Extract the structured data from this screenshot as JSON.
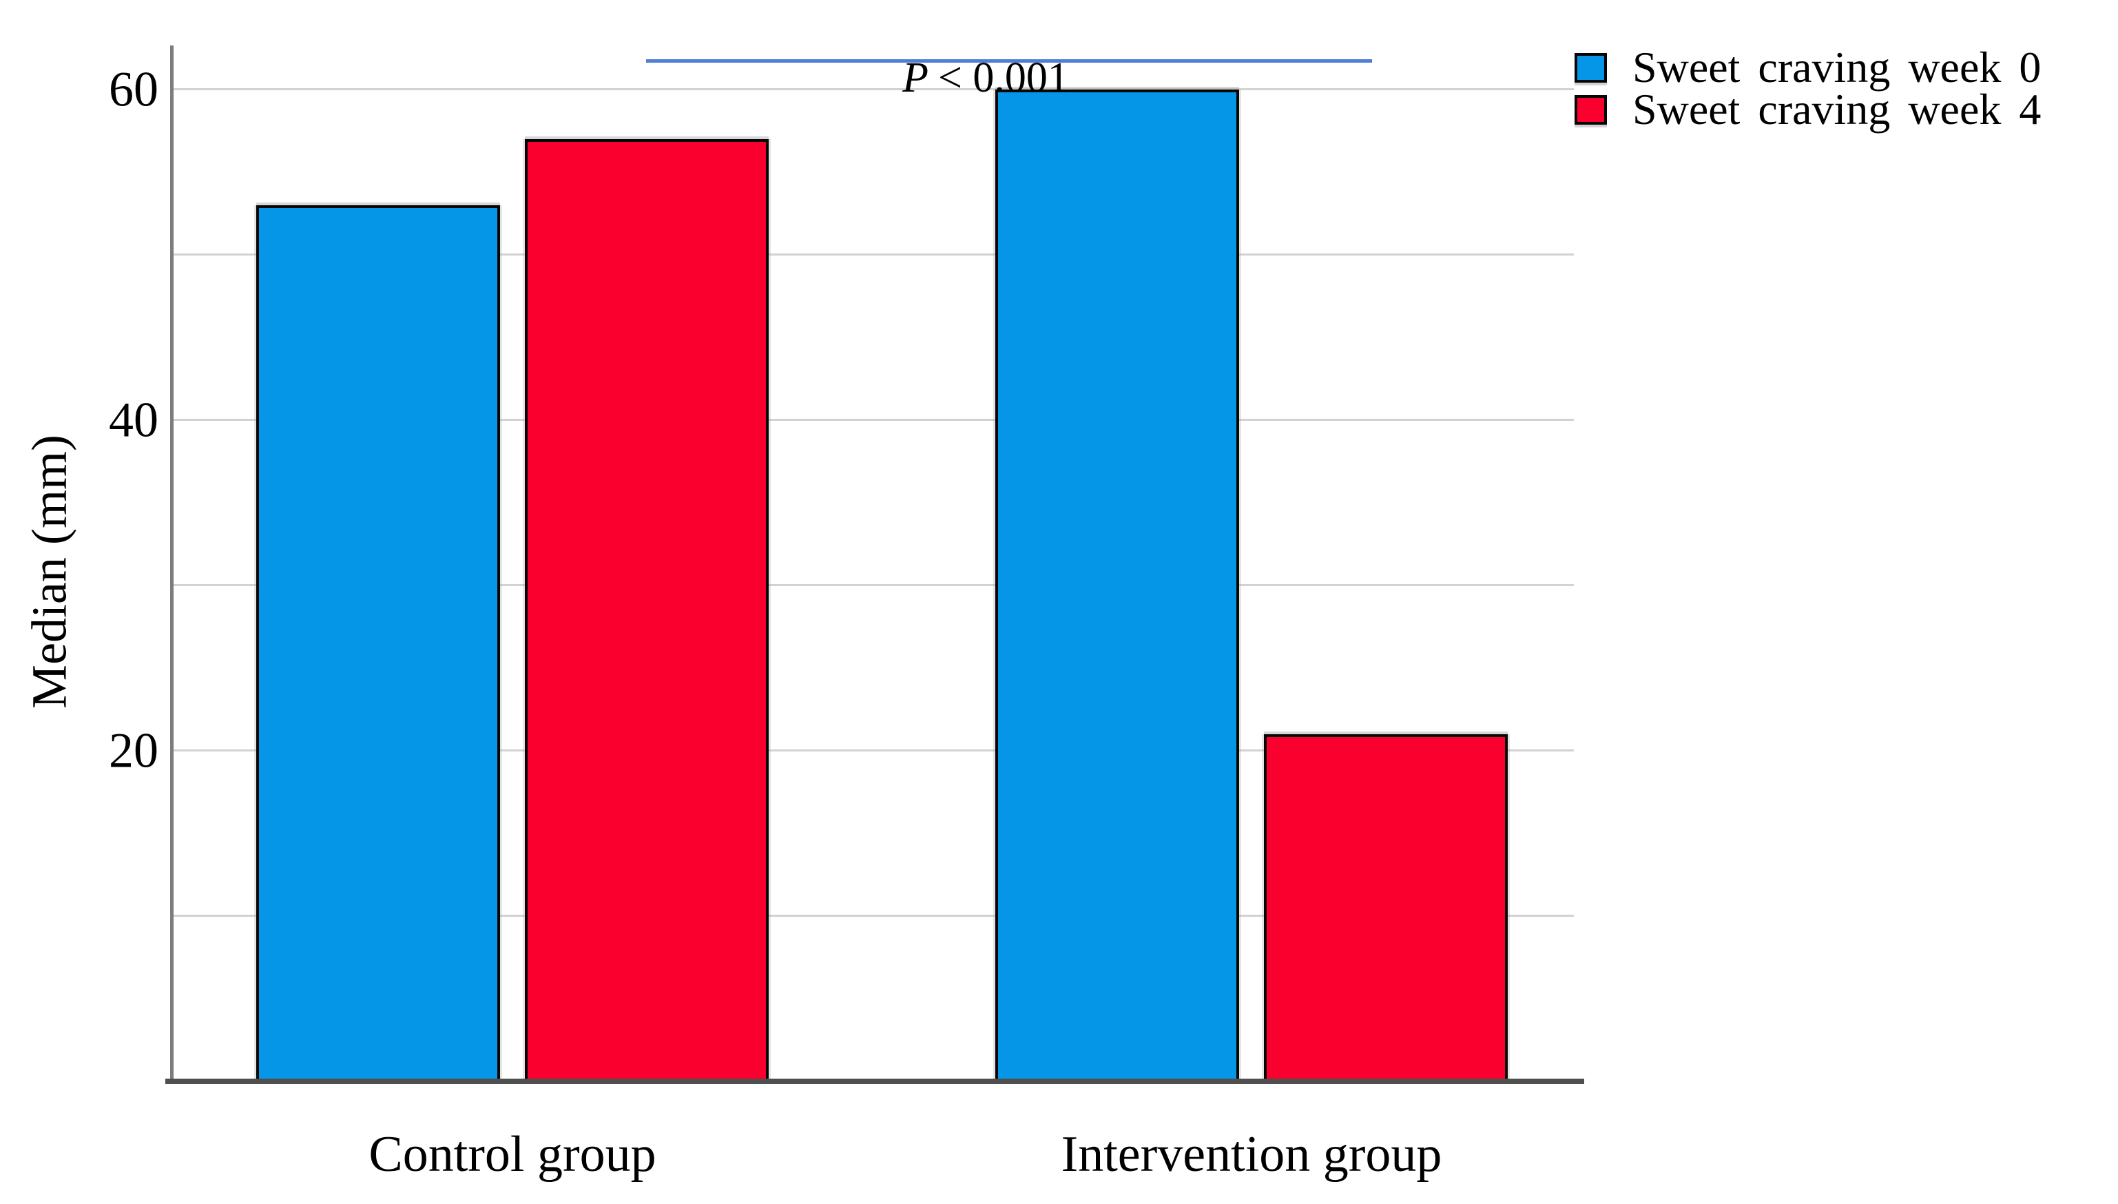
{
  "chart_data": {
    "type": "bar",
    "title": "",
    "xlabel": "",
    "ylabel": "Median (mm)",
    "categories": [
      "Control group",
      "Intervention group"
    ],
    "series": [
      {
        "name": "Sweet craving week 0",
        "color": "#0696e8",
        "values": [
          53,
          60
        ]
      },
      {
        "name": "Sweet craving week 4",
        "color": "#fa002e",
        "values": [
          57,
          21
        ]
      }
    ],
    "ylim": [
      0,
      63
    ],
    "yticks_labeled": [
      20,
      40,
      60
    ],
    "gridlines": [
      10,
      20,
      30,
      40,
      50,
      60
    ],
    "grid": "horizontal",
    "legend_position": "top-right-outside",
    "annotation": {
      "p_symbol": "P",
      "p_rest": "< 0.001",
      "full_text": "P < 0.001",
      "line_color": "#4f7fd4"
    },
    "style": {
      "grid_color": "#d2d2d2",
      "y_axis_color": "#7d7d7d",
      "x_axis_color": "#4f4f4f",
      "bar_border_color": "#060606"
    }
  }
}
